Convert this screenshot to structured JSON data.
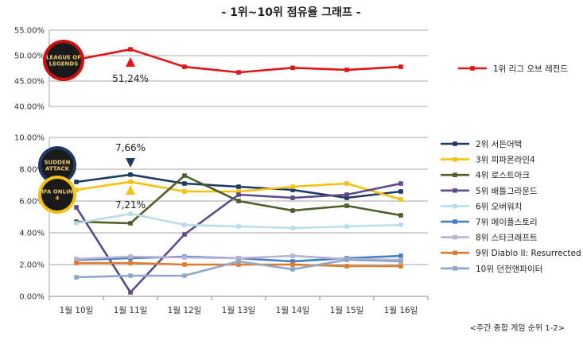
{
  "chart_data": {
    "title": "- 1위~10위 점유율 그래프 -",
    "footnote": "<주간 종합 게임 순위 1-2>",
    "categories": [
      "1월 10일",
      "1월 11일",
      "1월 12일",
      "1월 13일",
      "1월 14일",
      "1월 15일",
      "1월 16일"
    ],
    "charts": [
      {
        "type": "line",
        "ylim": [
          40,
          55
        ],
        "yticks": [
          "40.00%",
          "45.00%",
          "50.00%",
          "55.00%"
        ],
        "ytick_values": [
          40,
          45,
          50,
          55
        ],
        "grid": true,
        "legend_position": "right",
        "series": [
          {
            "name": "1위 리그 오브 레전드",
            "color": "#e31414",
            "values": [
              49.2,
              51.24,
              47.8,
              46.7,
              47.6,
              47.2,
              47.8
            ]
          }
        ],
        "annotation": {
          "text": "51,24%",
          "category_index": 1,
          "marker": "up-triangle",
          "marker_color": "#e31414"
        },
        "logo": {
          "label": "LEAGUE OF LEGENDS",
          "category_index": 0
        }
      },
      {
        "type": "line",
        "ylim": [
          0,
          10
        ],
        "yticks": [
          "0.00%",
          "2.00%",
          "4.00%",
          "6.00%",
          "8.00%",
          "10.00%"
        ],
        "ytick_values": [
          0,
          2,
          4,
          6,
          8,
          10
        ],
        "grid": true,
        "legend_position": "right",
        "series": [
          {
            "name": "2위 서든어택",
            "color": "#1f3864",
            "values": [
              7.2,
              7.66,
              7.1,
              6.9,
              6.7,
              6.2,
              6.6
            ]
          },
          {
            "name": "3위 피파온라인4",
            "color": "#f2c20e",
            "values": [
              6.7,
              7.21,
              6.6,
              6.6,
              6.9,
              7.1,
              6.1
            ]
          },
          {
            "name": "4위 로스트아크",
            "color": "#4d5e26",
            "values": [
              4.7,
              4.6,
              7.6,
              6.0,
              5.4,
              5.7,
              5.1
            ]
          },
          {
            "name": "5위 배틀그라운드",
            "color": "#5e4a8a",
            "values": [
              5.6,
              0.25,
              3.9,
              6.4,
              6.2,
              6.4,
              7.1
            ]
          },
          {
            "name": "6위 오버워치",
            "color": "#b9dde8",
            "values": [
              4.6,
              5.2,
              4.5,
              4.4,
              4.3,
              4.4,
              4.5
            ]
          },
          {
            "name": "7위 메이플스토리",
            "color": "#3f7ec5",
            "values": [
              2.3,
              2.4,
              2.5,
              2.4,
              2.2,
              2.4,
              2.55
            ]
          },
          {
            "name": "8위 스타크래프트",
            "color": "#b8b1d4",
            "values": [
              2.35,
              2.5,
              2.45,
              2.4,
              2.55,
              2.35,
              2.3
            ]
          },
          {
            "name": "9위 Diablo II: Resurrected",
            "color": "#e07b2c",
            "values": [
              2.1,
              2.1,
              2.0,
              2.0,
              2.0,
              1.9,
              1.9
            ]
          },
          {
            "name": "10위 던전앤파이터",
            "color": "#8ea7c8",
            "values": [
              1.2,
              1.3,
              1.3,
              2.2,
              1.7,
              2.3,
              2.2
            ]
          }
        ],
        "annotations": [
          {
            "text": "7,66%",
            "category_index": 1,
            "marker": "down-triangle",
            "marker_color": "#1f3864"
          },
          {
            "text": "7,21%",
            "category_index": 1,
            "marker": "up-triangle",
            "marker_color": "#f2c20e"
          }
        ],
        "logos": [
          {
            "label": "SUDDEN ATTACK",
            "category_index": 0
          },
          {
            "label": "FIFA ONLINE 4",
            "category_index": 0
          }
        ]
      }
    ]
  }
}
